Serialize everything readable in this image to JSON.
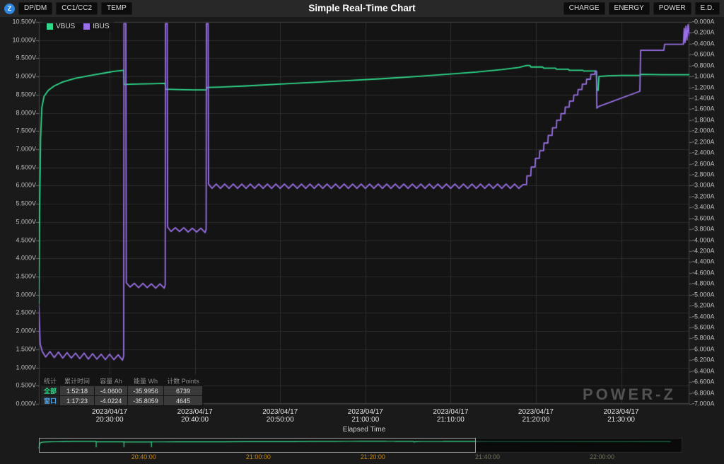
{
  "title": "Simple Real-Time Chart",
  "x_axis_title": "Elapsed Time",
  "watermark": "POWER-Z",
  "topbar": {
    "logo_glyph": "Z",
    "left_buttons": [
      "DP/DM",
      "CC1/CC2",
      "TEMP"
    ],
    "right_buttons": [
      "CHARGE",
      "ENERGY",
      "POWER",
      "E.D."
    ]
  },
  "legend": [
    {
      "label": "VBUS",
      "color": "#2fd98a"
    },
    {
      "label": "IBUS",
      "color": "#9a70e8"
    }
  ],
  "stats_table": {
    "headers": [
      "统计",
      "累计时间",
      "容量 Ah",
      "能量 Wh",
      "计数 Points"
    ],
    "rows": [
      {
        "label": "全部",
        "label_color": "#2fd98a",
        "values": [
          "1:52:18",
          "-4.0600",
          "-35.9956",
          "6739"
        ]
      },
      {
        "label": "窗口",
        "label_color": "#4fa3e3",
        "values": [
          "1:17:23",
          "-4.0224",
          "-35.8059",
          "4645"
        ]
      }
    ]
  },
  "colors": {
    "plot_bg": "#141414",
    "grid": "#2b2b2b",
    "nav_label_active": "#cf8a0a",
    "nav_label_inactive": "#73735c"
  },
  "chart_data": {
    "type": "line",
    "title": "Simple Real-Time Chart",
    "xlabel": "Elapsed Time",
    "grid": true,
    "legend_position": "top-left",
    "x_axis": {
      "unit": "minutes since 2023/04/17 20:20:00",
      "t_start": 1.7,
      "t_end": 78,
      "ticks": [
        {
          "t": 10,
          "date": "2023/04/17",
          "time": "20:30:00"
        },
        {
          "t": 20,
          "date": "2023/04/17",
          "time": "20:40:00"
        },
        {
          "t": 30,
          "date": "2023/04/17",
          "time": "20:50:00"
        },
        {
          "t": 40,
          "date": "2023/04/17",
          "time": "21:00:00"
        },
        {
          "t": 50,
          "date": "2023/04/17",
          "time": "21:10:00"
        },
        {
          "t": 60,
          "date": "2023/04/17",
          "time": "21:20:00"
        },
        {
          "t": 70,
          "date": "2023/04/17",
          "time": "21:30:00"
        }
      ]
    },
    "left_axis": {
      "min": 0,
      "max": 10.5,
      "step": 0.5,
      "unit": "V",
      "labels": [
        "10.500V",
        "10.000V",
        "9.500V",
        "9.000V",
        "8.500V",
        "8.000V",
        "7.500V",
        "7.000V",
        "6.500V",
        "6.000V",
        "5.500V",
        "5.000V",
        "4.500V",
        "4.000V",
        "3.500V",
        "3.000V",
        "2.500V",
        "2.000V",
        "1.500V",
        "1.000V",
        "0.500V",
        "0.000V"
      ]
    },
    "right_axis": {
      "min": -7,
      "max": 0,
      "step": 0.2,
      "unit": "A",
      "labels": [
        "-0.000A",
        "-0.200A",
        "-0.400A",
        "-0.600A",
        "-0.800A",
        "-1.000A",
        "-1.200A",
        "-1.400A",
        "-1.600A",
        "-1.800A",
        "-2.000A",
        "-2.200A",
        "-2.400A",
        "-2.600A",
        "-2.800A",
        "-3.000A",
        "-3.200A",
        "-3.400A",
        "-3.600A",
        "-3.800A",
        "-4.000A",
        "-4.200A",
        "-4.400A",
        "-4.600A",
        "-4.800A",
        "-5.000A",
        "-5.200A",
        "-5.400A",
        "-5.600A",
        "-5.800A",
        "-6.000A",
        "-6.200A",
        "-6.400A",
        "-6.600A",
        "-6.800A",
        "-7.000A"
      ]
    },
    "series": [
      {
        "name": "VBUS",
        "color": "#2fd98a",
        "axis": "left",
        "points": [
          [
            1.7,
            2.75
          ],
          [
            1.78,
            5.2
          ],
          [
            1.9,
            7.3
          ],
          [
            2.05,
            8.15
          ],
          [
            2.3,
            8.45
          ],
          [
            2.8,
            8.62
          ],
          [
            3.5,
            8.74
          ],
          [
            4.5,
            8.85
          ],
          [
            6,
            8.95
          ],
          [
            8,
            9.04
          ],
          [
            9.5,
            9.1
          ],
          [
            10.5,
            9.14
          ],
          [
            11.65,
            9.17
          ],
          [
            11.7,
            8.78
          ],
          [
            13,
            8.79
          ],
          [
            15,
            8.8
          ],
          [
            16.5,
            8.81
          ],
          [
            16.57,
            8.65
          ],
          [
            18,
            8.64
          ],
          [
            20,
            8.63
          ],
          [
            21.33,
            8.63
          ],
          [
            21.42,
            8.7
          ],
          [
            23,
            8.71
          ],
          [
            26,
            8.74
          ],
          [
            30,
            8.79
          ],
          [
            34,
            8.84
          ],
          [
            38,
            8.89
          ],
          [
            42,
            8.94
          ],
          [
            46,
            9.0
          ],
          [
            50,
            9.07
          ],
          [
            53,
            9.12
          ],
          [
            56,
            9.19
          ],
          [
            58,
            9.25
          ],
          [
            58.9,
            9.3
          ],
          [
            59.3,
            9.3
          ],
          [
            59.4,
            9.26
          ],
          [
            60.8,
            9.26
          ],
          [
            60.9,
            9.23
          ],
          [
            62.3,
            9.23
          ],
          [
            62.4,
            9.2
          ],
          [
            63.8,
            9.2
          ],
          [
            63.9,
            9.17
          ],
          [
            65.5,
            9.17
          ],
          [
            65.6,
            9.15
          ],
          [
            67.0,
            9.15
          ],
          [
            67.1,
            9.13
          ],
          [
            67.15,
            8.62
          ],
          [
            67.3,
            8.62
          ],
          [
            67.4,
            9.0
          ],
          [
            68.5,
            9.02
          ],
          [
            70,
            9.03
          ],
          [
            72.2,
            9.03
          ],
          [
            72.3,
            9.06
          ],
          [
            75,
            9.05
          ],
          [
            78,
            9.05
          ]
        ]
      },
      {
        "name": "IBUS",
        "color": "#9a70e8",
        "axis": "right",
        "points": [
          [
            1.7,
            -5.2
          ],
          [
            1.85,
            -5.9
          ],
          [
            2.1,
            -6.04
          ],
          [
            2.5,
            -6.14
          ],
          [
            3,
            -6.04
          ],
          [
            3.5,
            -6.15
          ],
          [
            4,
            -6.05
          ],
          [
            4.5,
            -6.16
          ],
          [
            5,
            -6.06
          ],
          [
            5.5,
            -6.16
          ],
          [
            6,
            -6.07
          ],
          [
            6.5,
            -6.17
          ],
          [
            7,
            -6.07
          ],
          [
            7.5,
            -6.18
          ],
          [
            8,
            -6.08
          ],
          [
            8.5,
            -6.18
          ],
          [
            9,
            -6.09
          ],
          [
            9.5,
            -6.19
          ],
          [
            10,
            -6.09
          ],
          [
            10.5,
            -6.19
          ],
          [
            11,
            -6.1
          ],
          [
            11.5,
            -6.2
          ],
          [
            11.65,
            -6.12
          ],
          [
            11.68,
            -0.03
          ],
          [
            11.9,
            -0.03
          ],
          [
            11.95,
            -4.78
          ],
          [
            12.4,
            -4.86
          ],
          [
            12.9,
            -4.79
          ],
          [
            13.4,
            -4.87
          ],
          [
            13.9,
            -4.79
          ],
          [
            14.4,
            -4.87
          ],
          [
            14.9,
            -4.8
          ],
          [
            15.4,
            -4.88
          ],
          [
            15.9,
            -4.8
          ],
          [
            16.4,
            -4.88
          ],
          [
            16.52,
            -4.82
          ],
          [
            16.55,
            -0.03
          ],
          [
            16.75,
            -0.03
          ],
          [
            16.8,
            -3.76
          ],
          [
            17.2,
            -3.84
          ],
          [
            17.7,
            -3.77
          ],
          [
            18.2,
            -3.84
          ],
          [
            18.7,
            -3.77
          ],
          [
            19.2,
            -3.85
          ],
          [
            19.7,
            -3.78
          ],
          [
            20.2,
            -3.85
          ],
          [
            20.7,
            -3.78
          ],
          [
            21.2,
            -3.86
          ],
          [
            21.32,
            -3.8
          ],
          [
            21.35,
            -0.03
          ],
          [
            21.55,
            -0.03
          ],
          [
            21.6,
            -2.97
          ],
          [
            22,
            -3.05
          ],
          [
            22.5,
            -2.97
          ],
          [
            23,
            -3.05
          ],
          [
            23.5,
            -2.97
          ],
          [
            24,
            -3.05
          ],
          [
            24.5,
            -2.97
          ],
          [
            25,
            -3.05
          ],
          [
            25.5,
            -2.97
          ],
          [
            26,
            -3.05
          ],
          [
            26.5,
            -2.97
          ],
          [
            27,
            -3.05
          ],
          [
            27.5,
            -2.97
          ],
          [
            28,
            -3.05
          ],
          [
            28.5,
            -2.97
          ],
          [
            29,
            -3.05
          ],
          [
            29.5,
            -2.97
          ],
          [
            30,
            -3.05
          ],
          [
            30.5,
            -2.97
          ],
          [
            31,
            -3.05
          ],
          [
            31.5,
            -2.97
          ],
          [
            32,
            -3.05
          ],
          [
            32.5,
            -2.97
          ],
          [
            33,
            -3.05
          ],
          [
            33.5,
            -2.97
          ],
          [
            34,
            -3.05
          ],
          [
            34.5,
            -2.97
          ],
          [
            35,
            -3.05
          ],
          [
            35.5,
            -2.97
          ],
          [
            36,
            -3.05
          ],
          [
            36.5,
            -2.97
          ],
          [
            37,
            -3.05
          ],
          [
            37.5,
            -2.97
          ],
          [
            38,
            -3.05
          ],
          [
            38.5,
            -2.97
          ],
          [
            39,
            -3.05
          ],
          [
            39.5,
            -2.97
          ],
          [
            40,
            -3.05
          ],
          [
            40.5,
            -2.97
          ],
          [
            41,
            -3.05
          ],
          [
            41.5,
            -2.97
          ],
          [
            42,
            -3.05
          ],
          [
            42.5,
            -2.97
          ],
          [
            43,
            -3.05
          ],
          [
            43.5,
            -2.97
          ],
          [
            44,
            -3.05
          ],
          [
            44.5,
            -2.97
          ],
          [
            45,
            -3.05
          ],
          [
            45.5,
            -2.97
          ],
          [
            46,
            -3.05
          ],
          [
            46.5,
            -2.97
          ],
          [
            47,
            -3.05
          ],
          [
            47.5,
            -2.97
          ],
          [
            48,
            -3.05
          ],
          [
            48.5,
            -2.97
          ],
          [
            49,
            -3.05
          ],
          [
            49.5,
            -2.97
          ],
          [
            50,
            -3.05
          ],
          [
            50.5,
            -2.97
          ],
          [
            51,
            -3.05
          ],
          [
            51.5,
            -2.97
          ],
          [
            52,
            -3.05
          ],
          [
            52.5,
            -2.97
          ],
          [
            53,
            -3.05
          ],
          [
            53.5,
            -2.97
          ],
          [
            54,
            -3.05
          ],
          [
            54.5,
            -2.97
          ],
          [
            55,
            -3.05
          ],
          [
            55.5,
            -2.97
          ],
          [
            56,
            -3.05
          ],
          [
            56.5,
            -2.97
          ],
          [
            57,
            -3.05
          ],
          [
            57.5,
            -2.97
          ],
          [
            58,
            -3.05
          ],
          [
            58.5,
            -2.98
          ],
          [
            58.9,
            -2.98
          ],
          [
            58.95,
            -2.82
          ],
          [
            59.4,
            -2.82
          ],
          [
            59.45,
            -2.66
          ],
          [
            59.9,
            -2.66
          ],
          [
            59.95,
            -2.5
          ],
          [
            60.4,
            -2.5
          ],
          [
            60.45,
            -2.36
          ],
          [
            60.9,
            -2.36
          ],
          [
            60.95,
            -2.22
          ],
          [
            61.4,
            -2.22
          ],
          [
            61.45,
            -2.08
          ],
          [
            61.9,
            -2.08
          ],
          [
            61.95,
            -1.94
          ],
          [
            62.4,
            -1.94
          ],
          [
            62.45,
            -1.8
          ],
          [
            62.9,
            -1.8
          ],
          [
            62.95,
            -1.68
          ],
          [
            63.4,
            -1.68
          ],
          [
            63.45,
            -1.56
          ],
          [
            63.9,
            -1.56
          ],
          [
            63.95,
            -1.45
          ],
          [
            64.4,
            -1.45
          ],
          [
            64.45,
            -1.34
          ],
          [
            64.9,
            -1.34
          ],
          [
            64.95,
            -1.24
          ],
          [
            65.4,
            -1.24
          ],
          [
            65.45,
            -1.14
          ],
          [
            65.9,
            -1.14
          ],
          [
            65.95,
            -1.05
          ],
          [
            66.4,
            -1.05
          ],
          [
            66.45,
            -0.96
          ],
          [
            66.9,
            -0.96
          ],
          [
            66.95,
            -0.9
          ],
          [
            67.1,
            -0.9
          ],
          [
            67.15,
            -1.58
          ],
          [
            67.35,
            -1.55
          ],
          [
            72.2,
            -1.27
          ],
          [
            72.28,
            -0.52
          ],
          [
            75,
            -0.52
          ],
          [
            75.1,
            -0.41
          ],
          [
            77.3,
            -0.41
          ],
          [
            77.4,
            -0.12
          ],
          [
            77.5,
            -0.38
          ],
          [
            77.6,
            -0.08
          ],
          [
            77.72,
            -0.33
          ],
          [
            77.85,
            -0.05
          ],
          [
            78,
            -0.25
          ]
        ]
      }
    ],
    "navigator": {
      "t_start": 1.7,
      "t_end": 114,
      "selection": [
        1.7,
        78
      ],
      "event_ticks": [
        11.7,
        16.55,
        21.35
      ],
      "extension": [
        [
          80,
          9.03
        ],
        [
          112,
          9.0
        ]
      ],
      "labels": [
        {
          "t": 20,
          "time": "20:40:00",
          "active": true
        },
        {
          "t": 40,
          "time": "21:00:00",
          "active": true
        },
        {
          "t": 60,
          "time": "21:20:00",
          "active": true
        },
        {
          "t": 80,
          "time": "21:40:00",
          "active": false
        },
        {
          "t": 100,
          "time": "22:00:00",
          "active": false
        }
      ]
    }
  }
}
